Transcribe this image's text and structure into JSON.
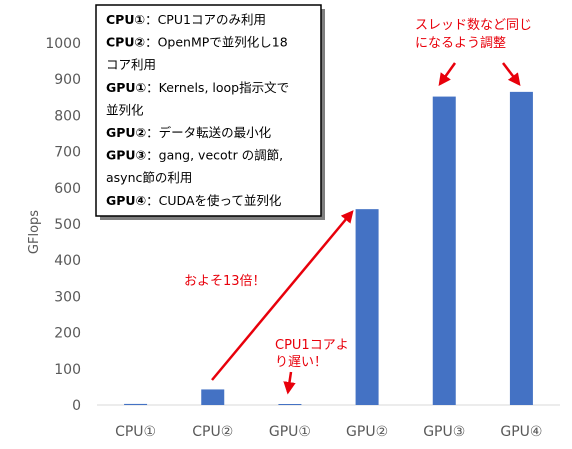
{
  "chart_data": {
    "type": "bar",
    "ylabel": "GFlops",
    "ylim": [
      0,
      1000
    ],
    "yticks": [
      "0",
      "100",
      "200",
      "300",
      "400",
      "500",
      "600",
      "700",
      "800",
      "900",
      "1000"
    ],
    "categories": [
      "CPU①",
      "CPU②",
      "GPU①",
      "GPU②",
      "GPU③",
      "GPU④"
    ],
    "values": [
      3,
      43,
      1,
      541,
      852,
      865
    ],
    "bar_color": "#4472c4",
    "grid": false,
    "legend_box": [
      {
        "key": "CPU①",
        "text": "：CPU1コアのみ利用"
      },
      {
        "key": "CPU②",
        "text": "：OpenMPで並列化し18"
      },
      {
        "key": "",
        "text": "コア利用"
      },
      {
        "key": "GPU①",
        "text": "：Kernels, loop指示文で"
      },
      {
        "key": "",
        "text": "並列化"
      },
      {
        "key": "GPU②",
        "text": "：データ転送の最小化"
      },
      {
        "key": "GPU③",
        "text": "：gang, vecotr の調節,"
      },
      {
        "key": "",
        "text": "async節の利用"
      },
      {
        "key": "GPU④",
        "text": "：CUDAを使って並列化"
      }
    ],
    "annotations": {
      "speedup": "およそ13倍！",
      "slower_line1": "CPU1コアよ",
      "slower_line2": "り遅い！",
      "same_threads_line1": "スレッド数など同じ",
      "same_threads_line2": "になるよう調整"
    },
    "annotation_color": "#e8000b"
  }
}
